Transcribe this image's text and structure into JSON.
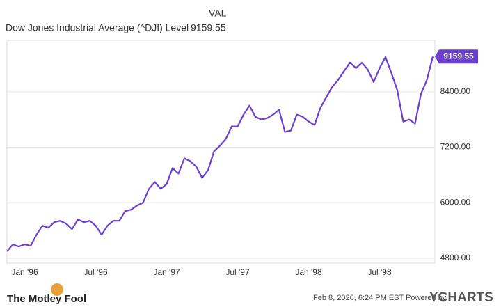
{
  "chart_data": {
    "type": "line",
    "column_header": "VAL",
    "series": [
      {
        "name": "Dow Jones Industrial Average (^DJI) Level",
        "color": "#6b3fd0",
        "values": [
          4950,
          5100,
          5055,
          5100,
          5070,
          5310,
          5505,
          5460,
          5580,
          5610,
          5550,
          5430,
          5640,
          5580,
          5610,
          5505,
          5310,
          5505,
          5610,
          5610,
          5820,
          5850,
          5940,
          6000,
          6300,
          6450,
          6300,
          6405,
          6750,
          6630,
          6960,
          6900,
          6780,
          6540,
          6705,
          7110,
          7230,
          7380,
          7650,
          7650,
          7905,
          8100,
          7860,
          7800,
          7830,
          7905,
          8010,
          7530,
          7560,
          7905,
          7860,
          7755,
          7680,
          8055,
          8280,
          8505,
          8655,
          8850,
          9030,
          8910,
          9030,
          8880,
          8610,
          8910,
          9150,
          8805,
          8430,
          7755,
          7800,
          7710,
          8355,
          8655,
          9159.55
        ]
      }
    ],
    "categories": [
      null,
      null,
      null,
      "Jan '96",
      null,
      null,
      null,
      null,
      null,
      null,
      null,
      null,
      null,
      null,
      null,
      "Jul '96",
      null,
      null,
      null,
      null,
      null,
      null,
      null,
      null,
      null,
      null,
      null,
      "Jan '97",
      null,
      null,
      null,
      null,
      null,
      null,
      null,
      null,
      null,
      null,
      null,
      "Jul '97",
      null,
      null,
      null,
      null,
      null,
      null,
      null,
      null,
      null,
      null,
      null,
      "Jan '98",
      null,
      null,
      null,
      null,
      null,
      null,
      null,
      null,
      null,
      null,
      null,
      "Jul '98",
      null,
      null,
      null,
      null,
      null,
      null,
      null,
      null,
      null
    ],
    "ylim": [
      4695,
      9510
    ],
    "yticks": [
      {
        "value": 4800,
        "label": "4800.00"
      },
      {
        "value": 6000,
        "label": "6000.00"
      },
      {
        "value": 7200,
        "label": "7200.00"
      },
      {
        "value": 8400,
        "label": "8400.00"
      }
    ],
    "grid": true,
    "footer": {
      "brand": "The Motley Fool",
      "timestamp": "Feb 8, 2026, 6:24 PM EST  Powered by",
      "provider": "YCHARTS"
    }
  }
}
